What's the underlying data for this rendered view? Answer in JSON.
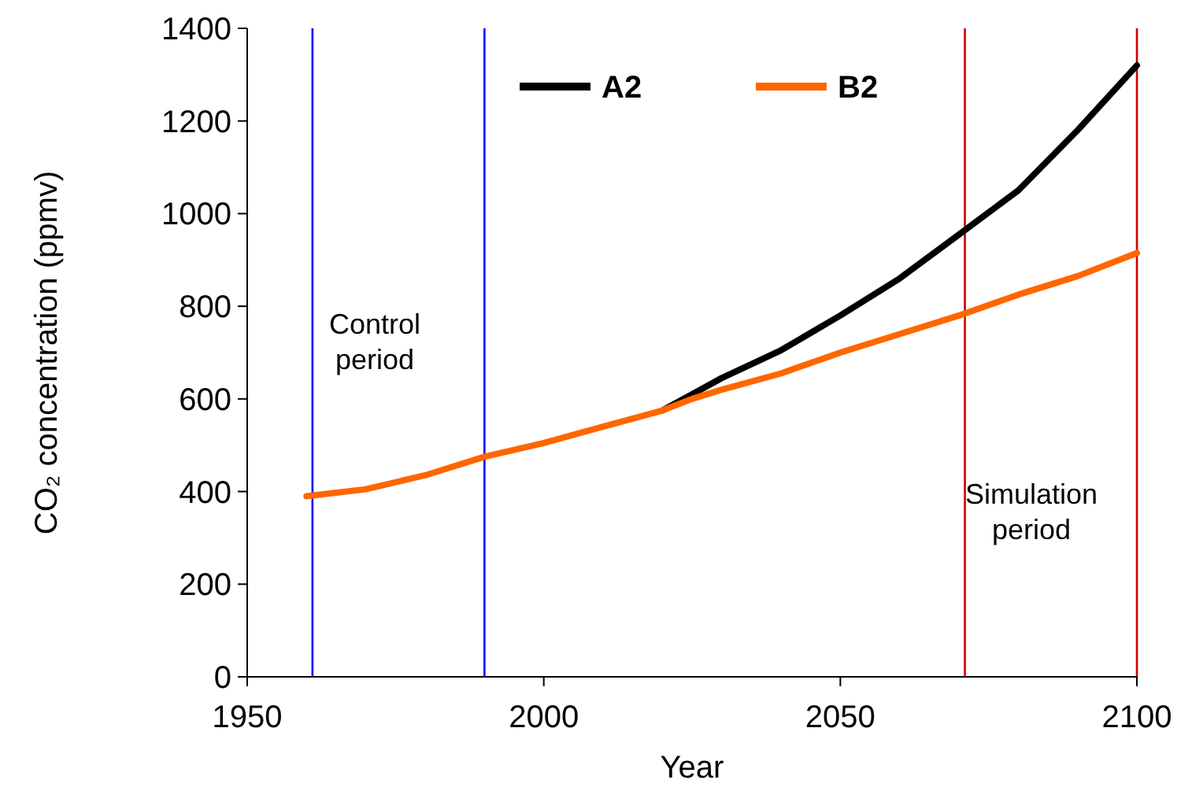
{
  "chart_data": {
    "type": "line",
    "xlabel": "Year",
    "ylabel": "CO₂ concentration (ppmv)",
    "xlim": [
      1950,
      2100
    ],
    "xticks": [
      1950,
      2000,
      2050,
      2100
    ],
    "ylim": [
      0,
      1400
    ],
    "yticks": [
      0,
      200,
      400,
      600,
      800,
      1000,
      1200,
      1400
    ],
    "grid": false,
    "legend": "top",
    "marker": "none",
    "line_style": "solid",
    "series": [
      {
        "name": "A2",
        "color": "#000000",
        "x": [
          2020,
          2025,
          2030,
          2040,
          2050,
          2060,
          2070,
          2080,
          2090,
          2100
        ],
        "values": [
          575,
          610,
          645,
          705,
          780,
          860,
          955,
          1050,
          1180,
          1320
        ]
      },
      {
        "name": "B2",
        "color": "#ff6600",
        "x": [
          1960,
          1970,
          1980,
          1990,
          2000,
          2010,
          2020,
          2025,
          2030,
          2040,
          2050,
          2060,
          2070,
          2080,
          2090,
          2100
        ],
        "values": [
          390,
          405,
          435,
          475,
          505,
          540,
          575,
          600,
          620,
          655,
          700,
          740,
          780,
          825,
          865,
          915
        ]
      }
    ],
    "ref_lines": [
      {
        "axis": "x",
        "value": 1961,
        "color": "#0000ff"
      },
      {
        "axis": "x",
        "value": 1990,
        "color": "#0000ff"
      },
      {
        "axis": "x",
        "value": 2071,
        "color": "#cc0000"
      },
      {
        "axis": "x",
        "value": 2100,
        "color": "#cc0000"
      }
    ],
    "annotations": [
      "Control period",
      "Simulation period"
    ]
  }
}
